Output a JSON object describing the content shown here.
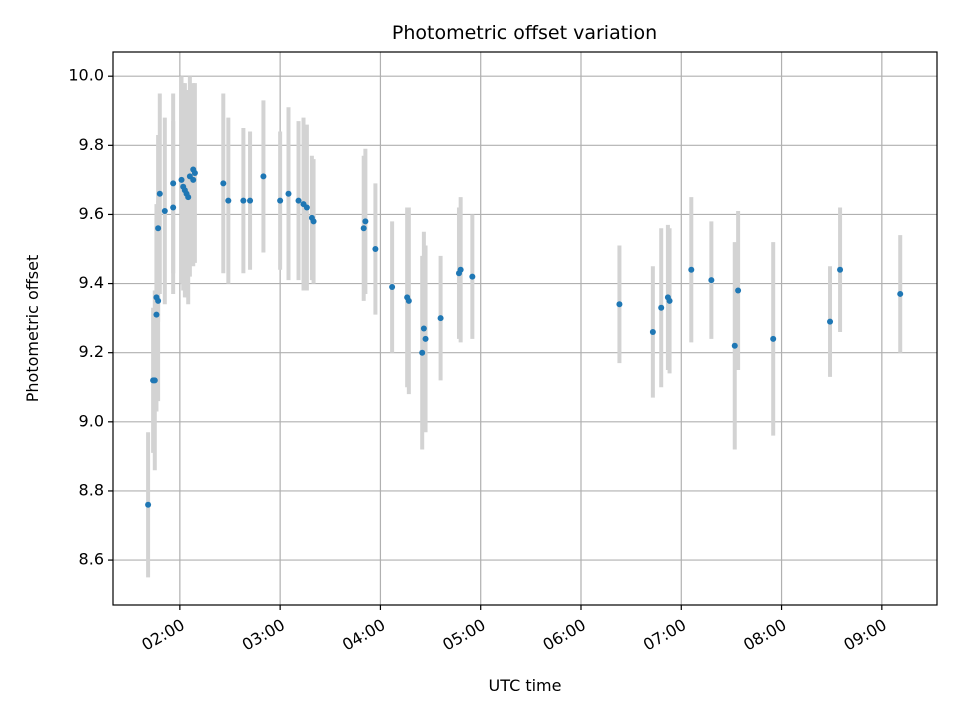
{
  "chart_data": {
    "type": "scatter",
    "title": "Photometric offset variation",
    "xlabel": "UTC time",
    "ylabel": "Photometric offset",
    "x_unit": "UTC time of day (HH:MM)",
    "xlim": [
      "01:20",
      "09:33"
    ],
    "ylim": [
      8.47,
      10.07
    ],
    "yticks": [
      8.6,
      8.8,
      9.0,
      9.2,
      9.4,
      9.6,
      9.8,
      10.0
    ],
    "ytick_labels": [
      "8.6",
      "8.8",
      "9.0",
      "9.2",
      "9.4",
      "9.6",
      "9.8",
      "10.0"
    ],
    "xticks": [
      "02:00",
      "03:00",
      "04:00",
      "05:00",
      "06:00",
      "07:00",
      "08:00",
      "09:00"
    ],
    "xtick_labels": [
      "02:00",
      "03:00",
      "04:00",
      "05:00",
      "06:00",
      "07:00",
      "08:00",
      "09:00"
    ],
    "grid": true,
    "legend": "none",
    "colors": {
      "point": "#1f77b4",
      "errorbar": "#d3d3d3",
      "grid": "#b0b0b0"
    },
    "series": [
      {
        "x": [
          "01:41",
          "01:44",
          "01:45",
          "01:46",
          "01:46",
          "01:47",
          "01:47",
          "01:48",
          "01:51",
          "01:56",
          "01:56",
          "02:01",
          "02:02",
          "02:03",
          "02:04",
          "02:05",
          "02:06",
          "02:08",
          "02:08",
          "02:09",
          "02:26",
          "02:29",
          "02:38",
          "02:42",
          "02:50",
          "03:00",
          "03:05",
          "03:11",
          "03:14",
          "03:16",
          "03:19",
          "03:20",
          "03:50",
          "03:51",
          "03:57",
          "04:07",
          "04:16",
          "04:17",
          "04:25",
          "04:26",
          "04:27",
          "04:36",
          "04:47",
          "04:48",
          "04:55",
          "06:23",
          "06:43",
          "06:48",
          "06:52",
          "06:53",
          "07:06",
          "07:18",
          "07:32",
          "07:34",
          "07:55",
          "08:29",
          "08:35",
          "09:11"
        ],
        "y": [
          8.76,
          9.12,
          9.12,
          9.36,
          9.31,
          9.35,
          9.56,
          9.66,
          9.61,
          9.62,
          9.69,
          9.7,
          9.68,
          9.67,
          9.66,
          9.65,
          9.71,
          9.73,
          9.7,
          9.72,
          9.69,
          9.64,
          9.64,
          9.64,
          9.71,
          9.64,
          9.66,
          9.64,
          9.63,
          9.62,
          9.59,
          9.58,
          9.56,
          9.58,
          9.5,
          9.39,
          9.36,
          9.35,
          9.2,
          9.27,
          9.24,
          9.3,
          9.43,
          9.44,
          9.42,
          9.34,
          9.26,
          9.33,
          9.36,
          9.35,
          9.44,
          9.41,
          9.22,
          9.38,
          9.24,
          9.29,
          9.44,
          9.37
        ],
        "yerr": [
          0.21,
          0.21,
          0.26,
          0.27,
          0.28,
          0.29,
          0.27,
          0.29,
          0.27,
          0.25,
          0.26,
          0.3,
          0.3,
          0.31,
          0.3,
          0.31,
          0.29,
          0.25,
          0.25,
          0.26,
          0.26,
          0.24,
          0.21,
          0.2,
          0.22,
          0.2,
          0.25,
          0.23,
          0.25,
          0.24,
          0.18,
          0.18,
          0.21,
          0.21,
          0.19,
          0.19,
          0.26,
          0.27,
          0.28,
          0.28,
          0.27,
          0.18,
          0.19,
          0.21,
          0.18,
          0.17,
          0.19,
          0.23,
          0.21,
          0.21,
          0.21,
          0.17,
          0.3,
          0.23,
          0.28,
          0.16,
          0.18,
          0.17
        ]
      }
    ]
  }
}
